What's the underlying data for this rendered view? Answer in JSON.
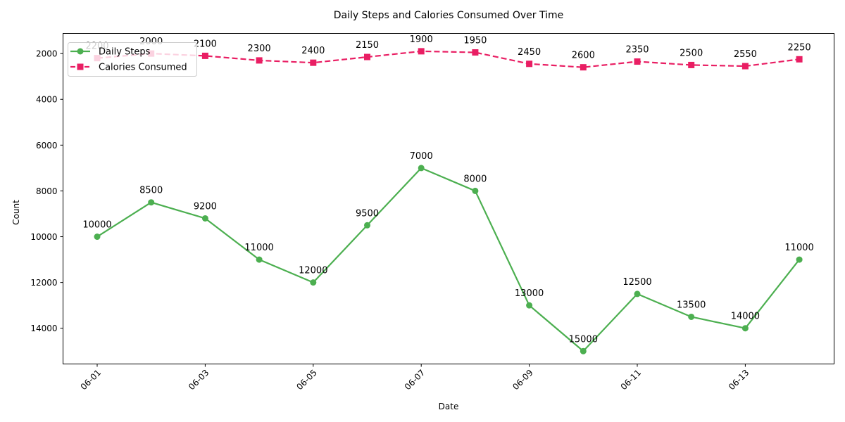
{
  "chart_data": {
    "type": "line",
    "title": "Daily Steps and Calories Consumed Over Time",
    "xlabel": "Date",
    "ylabel": "Count",
    "y_inverted": true,
    "ylim": [
      15560,
      1120
    ],
    "yticks": [
      2000,
      4000,
      6000,
      8000,
      10000,
      12000,
      14000
    ],
    "x": [
      "06-01",
      "06-02",
      "06-03",
      "06-04",
      "06-05",
      "06-06",
      "06-07",
      "06-08",
      "06-09",
      "06-10",
      "06-11",
      "06-12",
      "06-13",
      "06-14"
    ],
    "xtick_labels": [
      "06-01",
      "06-03",
      "06-05",
      "06-07",
      "06-09",
      "06-11",
      "06-13"
    ],
    "legend_position": "top-left",
    "grid": false,
    "data_labels": true,
    "series": [
      {
        "name": "Daily Steps",
        "values": [
          10000,
          8500,
          9200,
          11000,
          12000,
          9500,
          7000,
          8000,
          13000,
          15000,
          12500,
          13500,
          14000,
          11000
        ],
        "color": "#4caf50",
        "line_style": "solid",
        "marker": "circle"
      },
      {
        "name": "Calories Consumed",
        "values": [
          2200,
          2000,
          2100,
          2300,
          2400,
          2150,
          1900,
          1950,
          2450,
          2600,
          2350,
          2500,
          2550,
          2250
        ],
        "color": "#e91e63",
        "line_style": "dashed",
        "marker": "square"
      }
    ]
  }
}
